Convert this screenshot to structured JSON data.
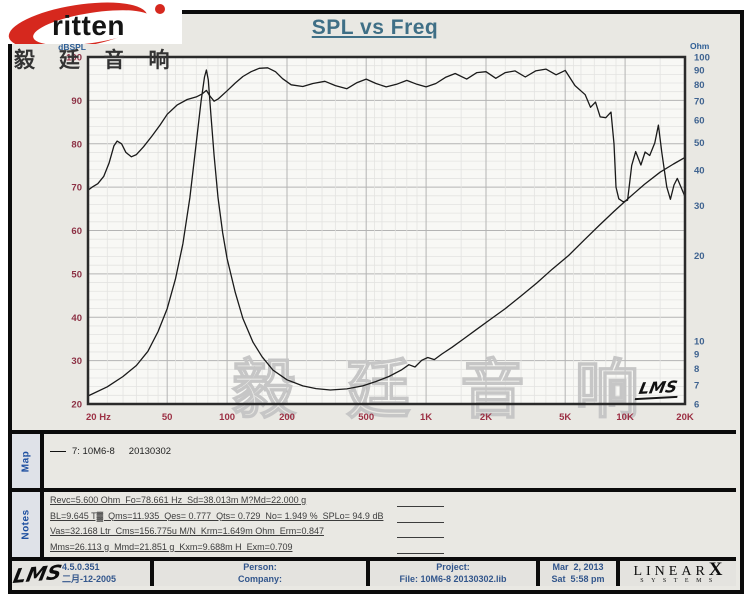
{
  "brand": {
    "name": "ritten",
    "cjk": "毅 廷 音 响"
  },
  "title": "SPL vs Freq",
  "watermark": {
    "large": "毅 廷 音 响",
    "plot_mark": "LMS"
  },
  "chart_data": {
    "type": "line",
    "title": "SPL vs Freq",
    "grid": "on",
    "x_axis": {
      "label": "Hz",
      "scale": "log",
      "range": [
        20,
        20000
      ],
      "ticks": [
        {
          "f": 20,
          "label": "20 Hz"
        },
        {
          "f": 50,
          "label": "50"
        },
        {
          "f": 100,
          "label": "100"
        },
        {
          "f": 200,
          "label": "200"
        },
        {
          "f": 500,
          "label": "500"
        },
        {
          "f": 1000,
          "label": "1K"
        },
        {
          "f": 2000,
          "label": "2K"
        },
        {
          "f": 5000,
          "label": "5K"
        },
        {
          "f": 10000,
          "label": "10K"
        },
        {
          "f": 20000,
          "label": "20K"
        }
      ]
    },
    "left_axis": {
      "unit": "dBSPL",
      "scale": "linear",
      "range": [
        20,
        100
      ],
      "ticks": [
        100,
        90,
        80,
        70,
        60,
        50,
        40,
        30,
        20
      ]
    },
    "right_axis": {
      "unit": "Ohm",
      "scale": "log",
      "range": [
        6,
        100
      ],
      "ticks": [
        100,
        90,
        80,
        70,
        60,
        50,
        40,
        30,
        20,
        10,
        9,
        8,
        7,
        6
      ]
    },
    "series": [
      {
        "name": "SPL",
        "axis": "left",
        "color": "#1a1a1a",
        "points": [
          [
            20,
            69.3
          ],
          [
            21,
            70
          ],
          [
            22.4,
            70.8
          ],
          [
            24,
            72.5
          ],
          [
            25.5,
            75.5
          ],
          [
            27,
            79.5
          ],
          [
            28,
            80.6
          ],
          [
            29.5,
            80
          ],
          [
            31,
            78
          ],
          [
            33,
            77
          ],
          [
            35,
            77.5
          ],
          [
            38,
            79.3
          ],
          [
            42,
            81.8
          ],
          [
            46,
            84.3
          ],
          [
            50,
            86.8
          ],
          [
            56,
            88.9
          ],
          [
            63,
            90.2
          ],
          [
            70,
            90.8
          ],
          [
            75,
            91.5
          ],
          [
            78.7,
            92.3
          ],
          [
            82,
            91
          ],
          [
            86,
            89.8
          ],
          [
            90,
            90.3
          ],
          [
            100,
            92.2
          ],
          [
            110,
            94
          ],
          [
            120,
            95.5
          ],
          [
            132,
            96.6
          ],
          [
            145,
            97.4
          ],
          [
            160,
            97.5
          ],
          [
            175,
            96.6
          ],
          [
            190,
            95
          ],
          [
            210,
            93.6
          ],
          [
            240,
            93.2
          ],
          [
            270,
            93.9
          ],
          [
            310,
            94.4
          ],
          [
            350,
            93.4
          ],
          [
            400,
            92.7
          ],
          [
            450,
            94.1
          ],
          [
            500,
            94.9
          ],
          [
            560,
            93.9
          ],
          [
            630,
            93.1
          ],
          [
            710,
            93.7
          ],
          [
            800,
            94.6
          ],
          [
            900,
            93.7
          ],
          [
            1000,
            93.1
          ],
          [
            1120,
            93.9
          ],
          [
            1250,
            95.3
          ],
          [
            1400,
            96.2
          ],
          [
            1600,
            94.9
          ],
          [
            1800,
            96.4
          ],
          [
            2000,
            96.6
          ],
          [
            2240,
            95.1
          ],
          [
            2500,
            96.4
          ],
          [
            2800,
            96.8
          ],
          [
            3150,
            95.4
          ],
          [
            3550,
            96.8
          ],
          [
            4000,
            97.2
          ],
          [
            4500,
            95.9
          ],
          [
            5000,
            96.9
          ],
          [
            5600,
            93.4
          ],
          [
            6300,
            91.3
          ],
          [
            6700,
            88.4
          ],
          [
            7100,
            89.6
          ],
          [
            7500,
            86.2
          ],
          [
            8000,
            86
          ],
          [
            8500,
            87.3
          ],
          [
            8800,
            80
          ],
          [
            9000,
            70
          ],
          [
            9300,
            67.3
          ],
          [
            9800,
            66.6
          ],
          [
            10300,
            67
          ],
          [
            10800,
            75
          ],
          [
            11300,
            78.2
          ],
          [
            12000,
            75.1
          ],
          [
            12600,
            78.1
          ],
          [
            13300,
            77.3
          ],
          [
            14100,
            80.2
          ],
          [
            14700,
            84.3
          ],
          [
            15300,
            78
          ],
          [
            16200,
            70
          ],
          [
            16900,
            67.2
          ],
          [
            17600,
            70.5
          ],
          [
            18300,
            72
          ],
          [
            19100,
            70
          ],
          [
            20000,
            67.8
          ]
        ]
      },
      {
        "name": "Impedance",
        "axis": "right",
        "color": "#1a1a1a",
        "points": [
          [
            20,
            6.4
          ],
          [
            25,
            6.9
          ],
          [
            30,
            7.5
          ],
          [
            35,
            8.2
          ],
          [
            40,
            9.2
          ],
          [
            45,
            10.8
          ],
          [
            50,
            13
          ],
          [
            55,
            16.5
          ],
          [
            60,
            22
          ],
          [
            65,
            32
          ],
          [
            70,
            50
          ],
          [
            74,
            70
          ],
          [
            77,
            85
          ],
          [
            78.7,
            90
          ],
          [
            80.5,
            83
          ],
          [
            83,
            62
          ],
          [
            86,
            45
          ],
          [
            90,
            32
          ],
          [
            95,
            24
          ],
          [
            100,
            19.5
          ],
          [
            110,
            14.8
          ],
          [
            120,
            12
          ],
          [
            135,
            9.9
          ],
          [
            150,
            8.8
          ],
          [
            170,
            7.9
          ],
          [
            200,
            7.3
          ],
          [
            240,
            6.95
          ],
          [
            280,
            6.8
          ],
          [
            330,
            6.72
          ],
          [
            400,
            6.78
          ],
          [
            480,
            6.95
          ],
          [
            560,
            7.2
          ],
          [
            650,
            7.5
          ],
          [
            750,
            7.9
          ],
          [
            820,
            8.25
          ],
          [
            880,
            8.1
          ],
          [
            950,
            8.55
          ],
          [
            1020,
            8.75
          ],
          [
            1100,
            8.6
          ],
          [
            1200,
            9
          ],
          [
            1350,
            9.5
          ],
          [
            1550,
            10.2
          ],
          [
            1800,
            11
          ],
          [
            2100,
            11.9
          ],
          [
            2500,
            13
          ],
          [
            3000,
            14.4
          ],
          [
            3600,
            16
          ],
          [
            4300,
            17.9
          ],
          [
            5200,
            20
          ],
          [
            6200,
            22.6
          ],
          [
            7400,
            25.5
          ],
          [
            8800,
            28.6
          ],
          [
            10500,
            32
          ],
          [
            12500,
            35.6
          ],
          [
            15000,
            39.3
          ],
          [
            17500,
            42
          ],
          [
            20000,
            44.3
          ]
        ]
      }
    ]
  },
  "map": {
    "label": "Map",
    "curve_id": "7: 10M6-8",
    "curve_date": "20130302"
  },
  "notes": {
    "label": "Notes",
    "lines": [
      "Revc=5.600 Ohm  Fo=78.661 Hz  Sd=38.013m M?Md=22.000 g",
      "BL=9.645 T▓  Qms=11.935  Qes= 0.777  Qts= 0.729  No= 1.949 %  SPLo= 94.9 dB",
      "Vas=32.168 Ltr  Cms=156.775u M/N  Krm=1.649m Ohm  Erm=0.847",
      "Mms=26.113 g  Mmd=21.851 g  Kxm=9.688m H  Exm=0.709"
    ]
  },
  "status_bar": {
    "lms_logo": "LMS",
    "version": "4.5.0.351",
    "version_date": "二月-12-2005",
    "person_label": "Person:",
    "company_label": "Company:",
    "project_label": "Project:",
    "file_label": "File: 10M6-8 20130302.lib",
    "date": "Mar  2, 2013",
    "time": "Sat  5:58 pm",
    "linearx_line1": "LINEAR",
    "linearx_x": "X",
    "linearx_line2": "SYSTEMS"
  },
  "colors": {
    "left_axis_text": "#8c3044",
    "right_axis_text": "#3f6390",
    "freq_axis_text": "#9c3044",
    "title_text": "#3f6f86",
    "side_label_text": "#1d4fa0",
    "status_text": "#32568c",
    "brand_red": "#d6281e",
    "curve": "#1a1a1a",
    "watermark_gray": "#c6c6c6"
  }
}
